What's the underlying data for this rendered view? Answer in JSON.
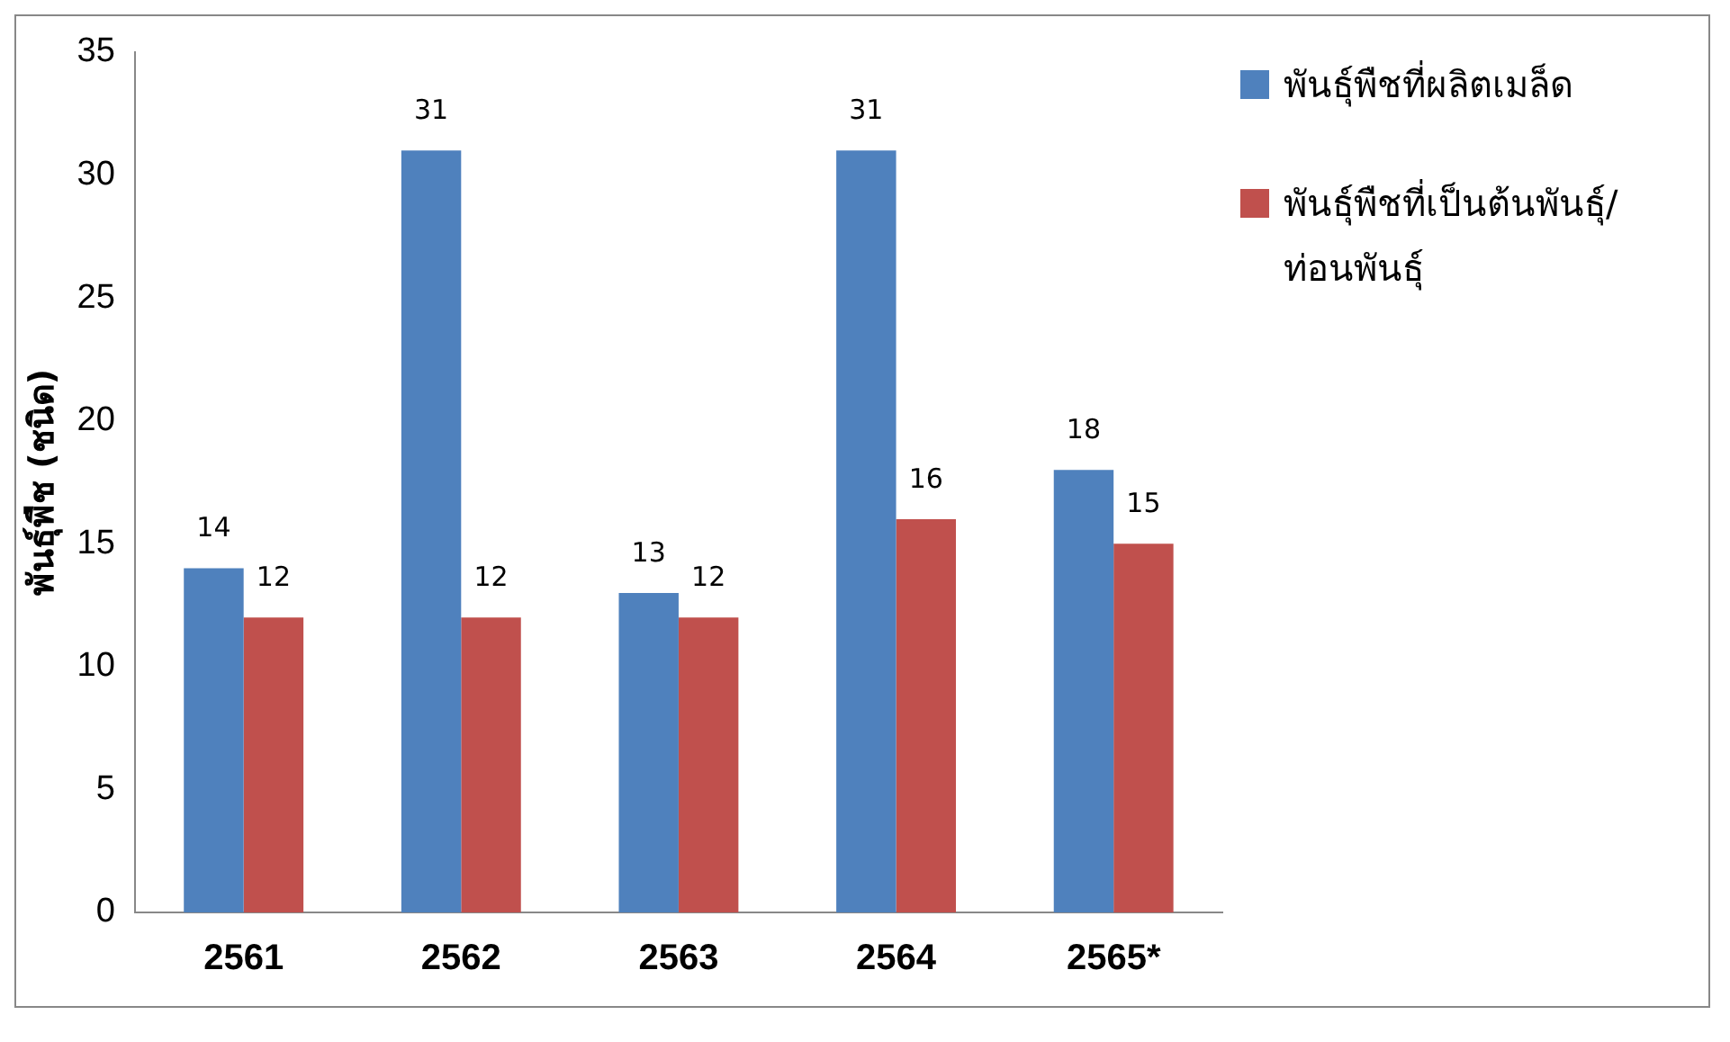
{
  "chart_data": {
    "type": "bar",
    "ylabel": "พันธุ์พืช (ชนิด)",
    "categories": [
      "2561",
      "2562",
      "2563",
      "2564",
      "2565*"
    ],
    "series": [
      {
        "name": "พันธุ์พืชที่ผลิตเมล็ด",
        "color": "#4f81bd",
        "values": [
          14,
          31,
          13,
          31,
          18
        ]
      },
      {
        "name": "พันธุ์พืชที่เป็นต้นพันธุ์/ ท่อนพันธุ์",
        "color": "#c0504d",
        "values": [
          12,
          12,
          12,
          16,
          15
        ]
      }
    ],
    "ylim": [
      0,
      35
    ],
    "yticks": [
      0,
      5,
      10,
      15,
      20,
      25,
      30,
      35
    ],
    "data_labels": true,
    "legend": "right"
  }
}
